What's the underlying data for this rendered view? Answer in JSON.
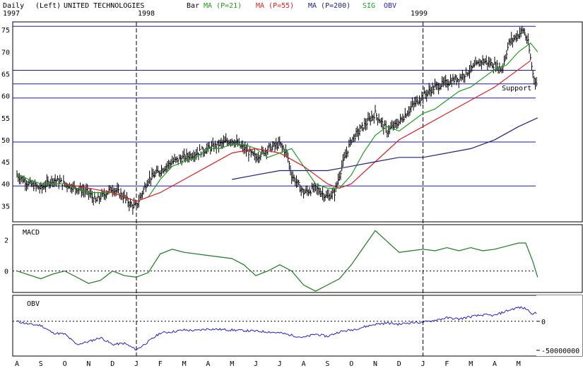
{
  "header": {
    "period": "Daily",
    "scale": "(Left)",
    "company": "UNITED TECHNOLOGIES",
    "bar_label": "Bar",
    "legend": [
      {
        "label": "MA (P=21)",
        "color": "#1e9e1e"
      },
      {
        "label": "MA (P=55)",
        "color": "#e02020"
      },
      {
        "label": "MA (P=200)",
        "color": "#202080"
      },
      {
        "label": "SIG",
        "color": "#1e9e1e"
      },
      {
        "label": "OBV",
        "color": "#2020d0"
      }
    ]
  },
  "colors": {
    "price_bars": "#000000",
    "ma21": "#1e9e1e",
    "ma55": "#e02020",
    "ma200": "#202080",
    "macd": "#1e7a1e",
    "obv": "#2020d0",
    "horizontal_lines": "#1a1aa0"
  },
  "chart_data": [
    {
      "type": "line",
      "panel": "price",
      "year_labels": [
        {
          "label": "1997",
          "at_month_index": 0
        },
        {
          "label": "1998",
          "at_month_index": 5
        },
        {
          "label": "1999",
          "at_month_index": 17
        }
      ],
      "year_dividers_at_month_index": [
        5,
        17
      ],
      "ylim": [
        32,
        76
      ],
      "y_ticks": [
        35,
        40,
        45,
        50,
        55,
        60,
        65,
        70,
        75
      ],
      "horizontal_levels": [
        39.5,
        49.5,
        59.5,
        62.7,
        65.8,
        75.8
      ],
      "annotation": {
        "text": "Support",
        "x": 20.3,
        "y": 62.7
      },
      "x_months": [
        "A",
        "S",
        "O",
        "N",
        "D",
        "J",
        "F",
        "M",
        "A",
        "M",
        "J",
        "J",
        "A",
        "S",
        "O",
        "N",
        "D",
        "J",
        "F",
        "M",
        "A",
        "M"
      ],
      "series": [
        {
          "name": "Price",
          "x": [
            0,
            0.5,
            1,
            1.5,
            2,
            2.5,
            3,
            3.3,
            3.5,
            4,
            4.5,
            4.8,
            5,
            5.5,
            6,
            6.5,
            7,
            7.5,
            8,
            8.5,
            9,
            9.5,
            10,
            10.5,
            11,
            11.3,
            11.5,
            12,
            12.5,
            13,
            13.3,
            13.6,
            14,
            14.5,
            15,
            15.5,
            16,
            16.3,
            16.6,
            17,
            17.5,
            18,
            18.5,
            19,
            19.5,
            20,
            20.3,
            20.6,
            21,
            21.2,
            21.4,
            21.6,
            21.8
          ],
          "y": [
            42,
            40,
            39,
            41,
            40,
            39,
            38,
            36,
            37,
            39,
            37,
            35,
            35,
            41,
            43,
            45,
            46,
            47,
            48,
            49,
            50,
            48,
            46,
            48,
            49,
            47,
            42,
            38,
            39,
            37,
            38,
            44,
            50,
            53,
            56,
            52,
            54,
            56,
            58,
            60,
            62,
            63,
            64,
            66,
            68,
            67,
            66,
            72,
            74,
            75,
            72,
            65,
            62
          ]
        },
        {
          "name": "MA (P=21)",
          "x": [
            0,
            1,
            2,
            3,
            3.5,
            4,
            4.5,
            5,
            5.5,
            6,
            6.5,
            7,
            7.5,
            8,
            8.5,
            9,
            9.5,
            10,
            10.5,
            11,
            11.5,
            12,
            12.5,
            13,
            13.5,
            14,
            14.5,
            15,
            15.5,
            16,
            16.5,
            17,
            17.5,
            18,
            18.5,
            19,
            19.5,
            20,
            20.5,
            21,
            21.5,
            21.8
          ],
          "y": [
            42,
            40,
            40,
            38,
            38,
            38,
            37,
            36,
            37,
            41,
            44,
            45,
            46,
            48,
            48,
            49,
            49,
            48,
            46,
            47,
            48,
            44,
            40,
            39,
            39,
            42,
            47,
            51,
            53,
            52,
            54,
            56,
            57,
            59,
            61,
            62,
            64,
            66,
            67,
            70,
            72,
            70
          ]
        },
        {
          "name": "MA (P=55)",
          "x": [
            2,
            3,
            4,
            5,
            6,
            7,
            8,
            9,
            10,
            11,
            12,
            12.5,
            13,
            13.5,
            14,
            15,
            16,
            17,
            18,
            19,
            20,
            21,
            21.5
          ],
          "y": [
            40,
            39,
            38,
            36,
            38,
            41,
            44,
            47,
            48,
            47,
            44,
            42,
            40,
            39,
            40,
            45,
            50,
            53,
            56,
            59,
            62,
            66,
            68
          ]
        },
        {
          "name": "MA (P=200)",
          "x": [
            9,
            10,
            11,
            12,
            13,
            14,
            15,
            16,
            17,
            18,
            19,
            20,
            21,
            21.8
          ],
          "y": [
            41,
            42,
            43,
            43,
            43,
            44,
            45,
            46,
            46,
            47,
            48,
            50,
            53,
            55
          ]
        }
      ]
    },
    {
      "type": "line",
      "panel": "macd",
      "title": "MACD",
      "ylim": [
        -1.2,
        2.8
      ],
      "y_ticks": [
        0,
        2
      ],
      "x": [
        0,
        1,
        1.5,
        2,
        2.5,
        3,
        3.5,
        4,
        4.5,
        5,
        5.5,
        6,
        6.5,
        7,
        8,
        9,
        9.5,
        10,
        10.5,
        11,
        11.5,
        12,
        12.5,
        13,
        13.5,
        14,
        14.5,
        15,
        15.5,
        16,
        16.5,
        17,
        17.5,
        18,
        18.5,
        19,
        19.5,
        20,
        20.5,
        21,
        21.3,
        21.6,
        21.8
      ],
      "y": [
        0,
        -0.5,
        -0.2,
        0,
        -0.4,
        -0.8,
        -0.6,
        0,
        -0.3,
        -0.4,
        -0.1,
        1.1,
        1.4,
        1.2,
        1.0,
        0.8,
        0.4,
        -0.3,
        0,
        0.4,
        0,
        -0.9,
        -1.3,
        -0.9,
        -0.5,
        0.4,
        1.5,
        2.6,
        1.9,
        1.2,
        1.3,
        1.4,
        1.3,
        1.5,
        1.3,
        1.5,
        1.3,
        1.4,
        1.6,
        1.8,
        1.8,
        0.6,
        -0.4
      ]
    },
    {
      "type": "line",
      "panel": "obv",
      "title": "OBV",
      "ylim": [
        -55000000,
        40000000
      ],
      "y_ticks": [
        0,
        -50000000
      ],
      "y_tick_labels": [
        "0",
        "-50000000"
      ],
      "x": [
        0,
        0.5,
        1,
        1.5,
        2,
        2.5,
        3,
        3.5,
        4,
        4.5,
        5,
        5.5,
        6,
        6.5,
        7,
        7.5,
        8,
        8.5,
        9,
        9.5,
        10,
        10.5,
        11,
        11.5,
        12,
        12.5,
        13,
        13.5,
        14,
        14.5,
        15,
        15.5,
        16,
        16.5,
        17,
        17.5,
        18,
        18.5,
        19,
        19.5,
        20,
        20.5,
        21,
        21.3,
        21.6,
        21.8
      ],
      "y": [
        0,
        -5000000,
        -7000000,
        -20000000,
        -22000000,
        -40000000,
        -35000000,
        -28000000,
        -40000000,
        -38000000,
        -49000000,
        -35000000,
        -20000000,
        -18000000,
        -15000000,
        -16000000,
        -13000000,
        -14000000,
        -15000000,
        -16000000,
        -17000000,
        -18000000,
        -20000000,
        -24000000,
        -28000000,
        -22000000,
        -26000000,
        -18000000,
        -15000000,
        -10000000,
        -5000000,
        -3000000,
        -5000000,
        -2000000,
        -2000000,
        2000000,
        6000000,
        4000000,
        8000000,
        11000000,
        10000000,
        18000000,
        24000000,
        22000000,
        13000000,
        14000000
      ]
    }
  ]
}
